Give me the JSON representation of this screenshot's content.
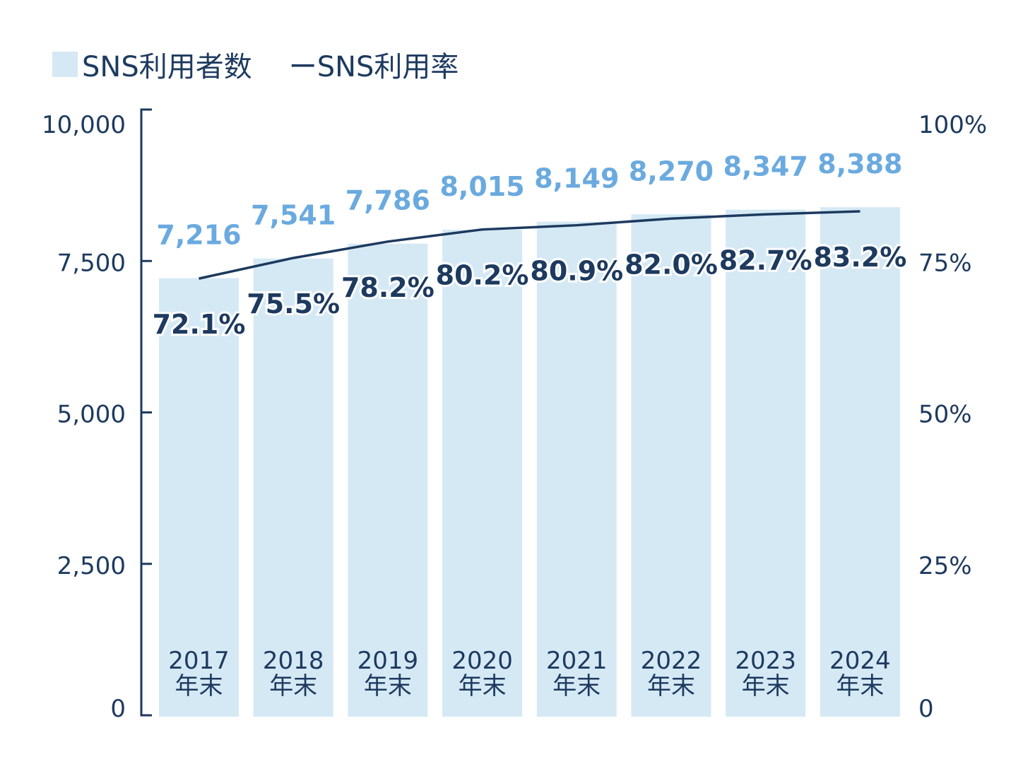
{
  "legend": {
    "bars_label": "SNS利用者数",
    "line_label": "ーSNS利用率"
  },
  "colors": {
    "bar": "#d5e9f5",
    "bar_value_label": "#6aaadf",
    "line": "#1d3a5f",
    "axis": "#1d3a5f",
    "text": "#1d3a5f"
  },
  "chart_data": {
    "type": "bar+line",
    "categories": [
      "2017\n年末",
      "2018\n年末",
      "2019\n年末",
      "2020\n年末",
      "2021\n年末",
      "2022\n年末",
      "2023\n年末",
      "2024\n年末"
    ],
    "category_years": [
      "2017",
      "2018",
      "2019",
      "2020",
      "2021",
      "2022",
      "2023",
      "2024"
    ],
    "category_suffix": "年末",
    "series": [
      {
        "name": "SNS利用者数",
        "type": "bar",
        "axis": "left",
        "values": [
          7216,
          7541,
          7786,
          8015,
          8149,
          8270,
          8347,
          8388
        ],
        "labels": [
          "7,216",
          "7,541",
          "7,786",
          "8,015",
          "8,149",
          "8,270",
          "8,347",
          "8,388"
        ]
      },
      {
        "name": "SNS利用率",
        "type": "line",
        "axis": "right",
        "values": [
          72.1,
          75.5,
          78.2,
          80.2,
          80.9,
          82.0,
          82.7,
          83.2
        ],
        "labels": [
          "72.1%",
          "75.5%",
          "78.2%",
          "80.2%",
          "80.9%",
          "82.0%",
          "82.7%",
          "83.2%"
        ]
      }
    ],
    "left_axis": {
      "ylim": [
        0,
        10000
      ],
      "ticks": [
        0,
        2500,
        5000,
        7500,
        10000
      ],
      "tick_labels": [
        "0",
        "2,500",
        "5,000",
        "7,500",
        "10,000"
      ]
    },
    "right_axis": {
      "ylim": [
        0,
        100
      ],
      "ticks": [
        0,
        25,
        50,
        75,
        100
      ],
      "tick_labels": [
        "0",
        "25%",
        "50%",
        "75%",
        "100%"
      ]
    },
    "grid": false,
    "legend_position": "top-left",
    "title": "",
    "xlabel": "",
    "ylabel": ""
  }
}
